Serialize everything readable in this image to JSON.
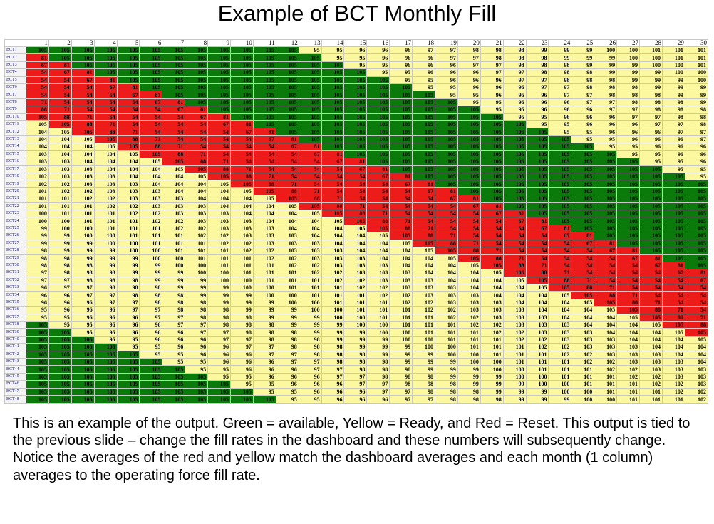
{
  "title": "Example of BCT Monthly Fill",
  "description": "This is an example of the output.  Green = available, Yellow = Ready, and Red = Reset.  This output is tied to the previous slide – change the fill rates in the dashboard and these numbers will subsequently change.   Notice the averages of the red and yellow match the dashboard averages and each month (1 column) averages to the operating force fill rate.",
  "legend": {
    "available": "#0a7a0a",
    "ready": "#fbf8a0",
    "reset": "#ee1b1b"
  },
  "table": {
    "columns": [
      "1",
      "2",
      "3",
      "4",
      "5",
      "6",
      "7",
      "8",
      "9",
      "10",
      "11",
      "12",
      "13",
      "14",
      "15",
      "16",
      "17",
      "18",
      "19",
      "20",
      "21",
      "22",
      "23",
      "24",
      "25",
      "26",
      "27",
      "28",
      "29",
      "30"
    ],
    "ready_cycle": [
      "95",
      "95",
      "96",
      "96",
      "96",
      "97",
      "97",
      "98",
      "98",
      "98",
      "99",
      "99",
      "99",
      "100",
      "100",
      "101",
      "101",
      "101",
      "102",
      "102",
      "103",
      "103",
      "103",
      "104",
      "104",
      "104",
      "105"
    ],
    "reset_cycle": [
      "105",
      "88",
      "71",
      "54",
      "54",
      "54",
      "54",
      "67",
      "81"
    ],
    "rows": [
      "BCT1",
      "BCT2",
      "BCT3",
      "BCT4",
      "BCT5",
      "BCT6",
      "BCT7",
      "BCT8",
      "BCT9",
      "BCT10",
      "BCT11",
      "BCT12",
      "BCT13",
      "BCT14",
      "BCT15",
      "BCT16",
      "BCT17",
      "BCT18",
      "BCT19",
      "BCT20",
      "BCT21",
      "BCT22",
      "BCT23",
      "BCT24",
      "BCT25",
      "BCT26",
      "BCT27",
      "BCT28",
      "BCT29",
      "BCT30",
      "BCT31",
      "BCT32",
      "BCT33",
      "BCT34",
      "BCT35",
      "BCT36",
      "BCT37",
      "BCT38",
      "BCT39",
      "BCT40",
      "BCT41",
      "BCT42",
      "BCT43",
      "BCT44",
      "BCT45",
      "BCT46",
      "BCT47",
      "BCT48"
    ]
  }
}
